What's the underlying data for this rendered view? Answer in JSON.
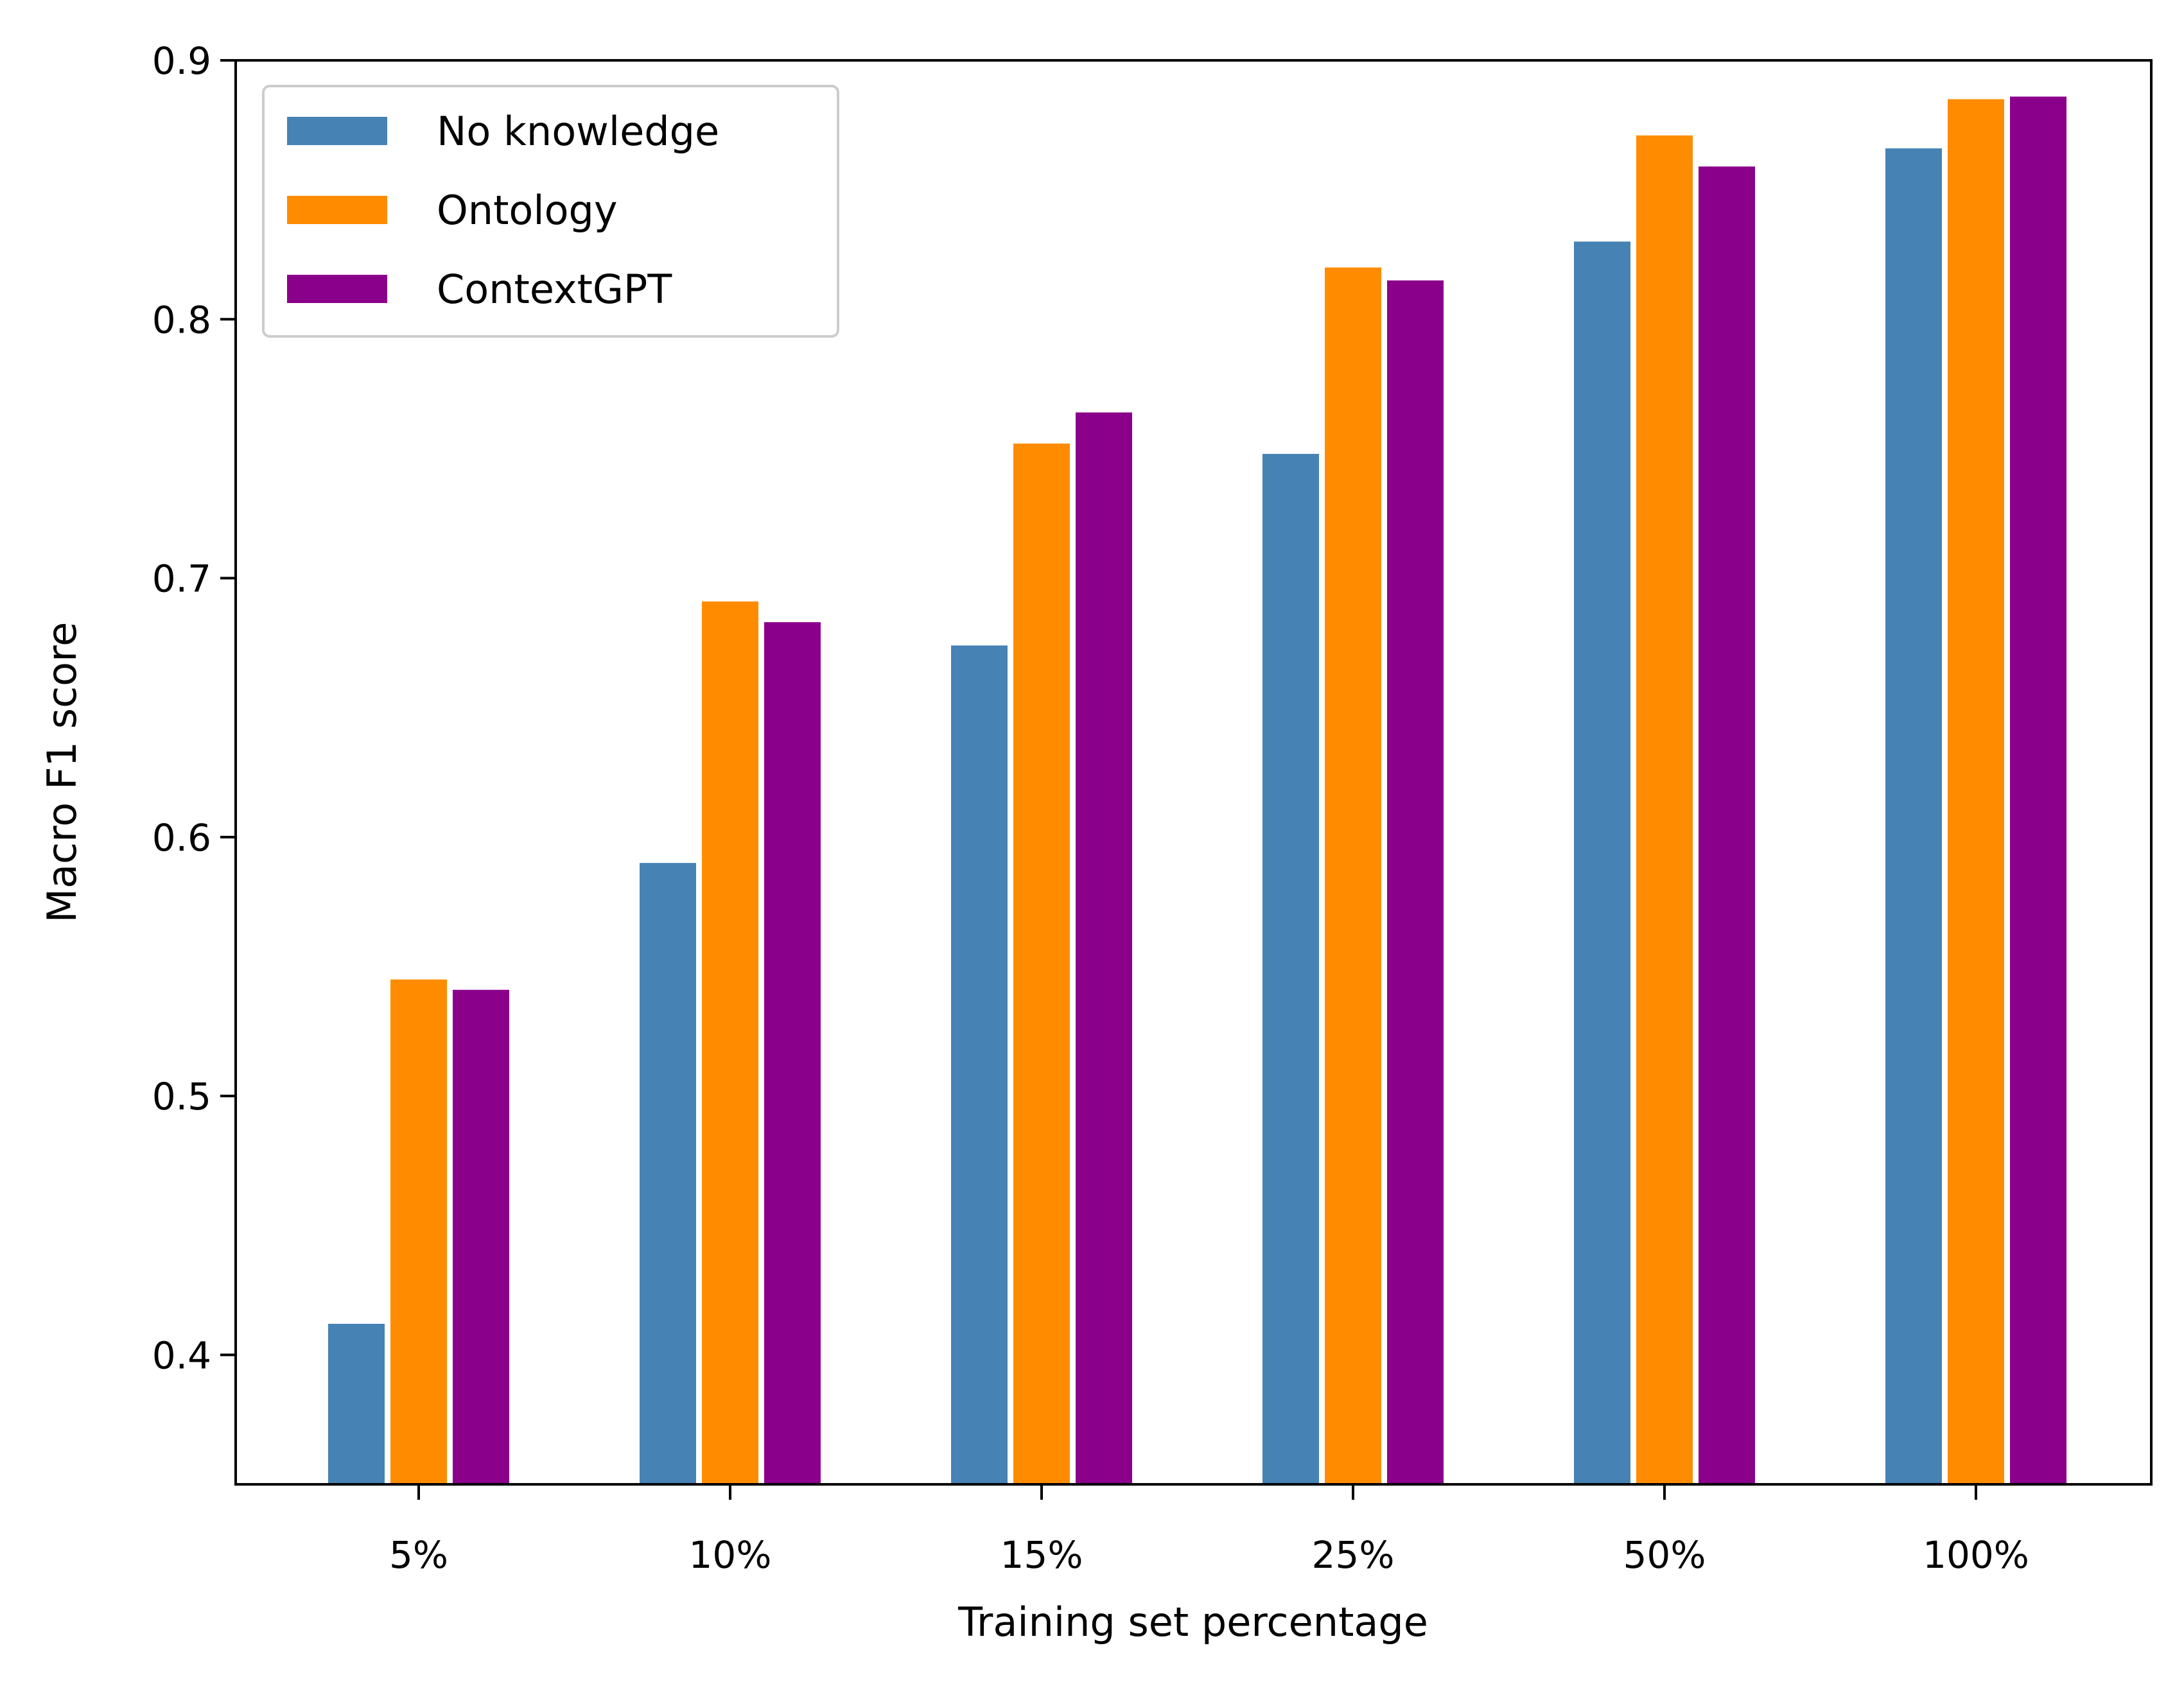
{
  "chart_data": {
    "type": "bar",
    "title": "",
    "xlabel": "Training set percentage",
    "ylabel": "Macro F1 score",
    "categories": [
      "5%",
      "10%",
      "15%",
      "25%",
      "50%",
      "100%"
    ],
    "ylim": [
      0.35,
      0.9
    ],
    "yticks": [
      0.4,
      0.5,
      0.6,
      0.7,
      0.8,
      0.9
    ],
    "ytick_labels": [
      "0.4",
      "0.5",
      "0.6",
      "0.7",
      "0.8",
      "0.9"
    ],
    "grid": false,
    "legend_position": "top-left",
    "series": [
      {
        "name": "No knowledge",
        "color": "#4682b4",
        "values": [
          0.412,
          0.59,
          0.674,
          0.748,
          0.83,
          0.866
        ]
      },
      {
        "name": "Ontology",
        "color": "#ff8c00",
        "values": [
          0.545,
          0.691,
          0.752,
          0.82,
          0.871,
          0.885
        ]
      },
      {
        "name": "ContextGPT",
        "color": "#8b008b",
        "values": [
          0.541,
          0.683,
          0.764,
          0.815,
          0.859,
          0.886
        ]
      }
    ]
  }
}
